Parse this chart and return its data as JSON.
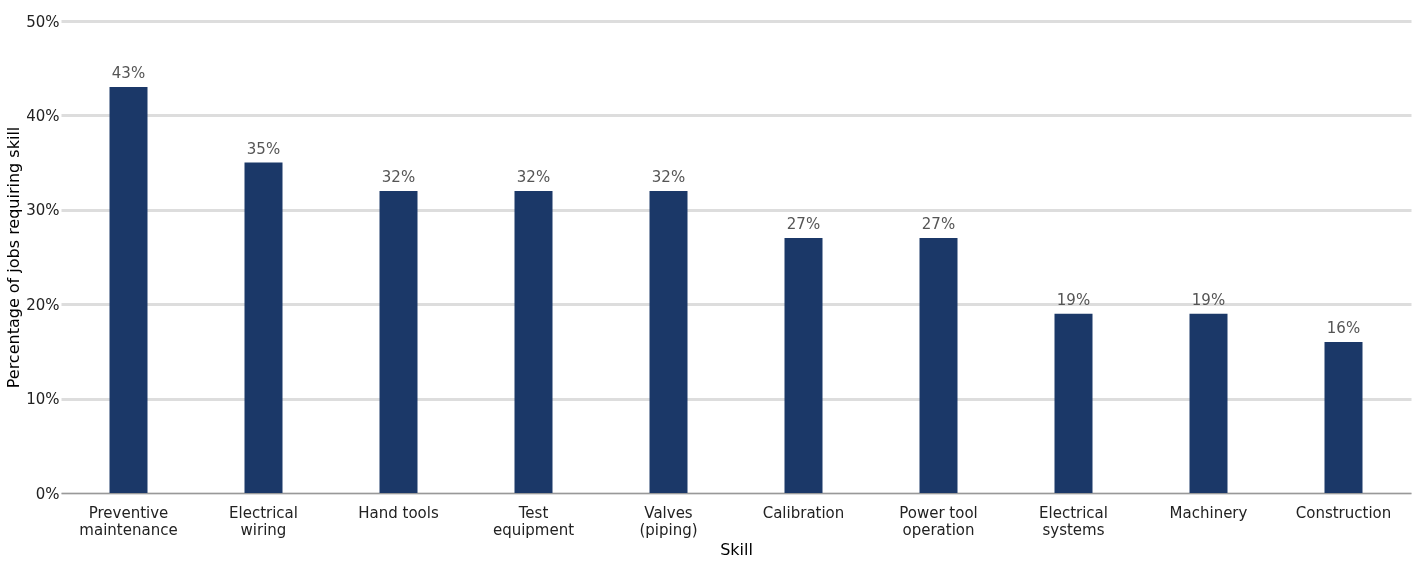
{
  "chart_data": {
    "type": "bar",
    "xlabel": "Skill",
    "ylabel": "Percentage of jobs requiring skill",
    "categories": [
      "Preventive\nmaintenance",
      "Electrical\nwiring",
      "Hand tools",
      "Test\nequipment",
      "Valves\n(piping)",
      "Calibration",
      "Power tool\noperation",
      "Electrical\nsystems",
      "Machinery",
      "Construction"
    ],
    "values": [
      43,
      35,
      32,
      32,
      32,
      27,
      27,
      19,
      19,
      16
    ],
    "value_labels": [
      "43%",
      "35%",
      "32%",
      "32%",
      "32%",
      "27%",
      "27%",
      "19%",
      "19%",
      "16%"
    ],
    "color": "#1b3868",
    "ylim": [
      0,
      50
    ],
    "yticks": [
      {
        "value": 0,
        "label": "0%"
      },
      {
        "value": 10,
        "label": "10%"
      },
      {
        "value": 20,
        "label": "20%"
      },
      {
        "value": 30,
        "label": "30%"
      },
      {
        "value": 40,
        "label": "40%"
      },
      {
        "value": 50,
        "label": "50%"
      }
    ],
    "grid": "y"
  }
}
